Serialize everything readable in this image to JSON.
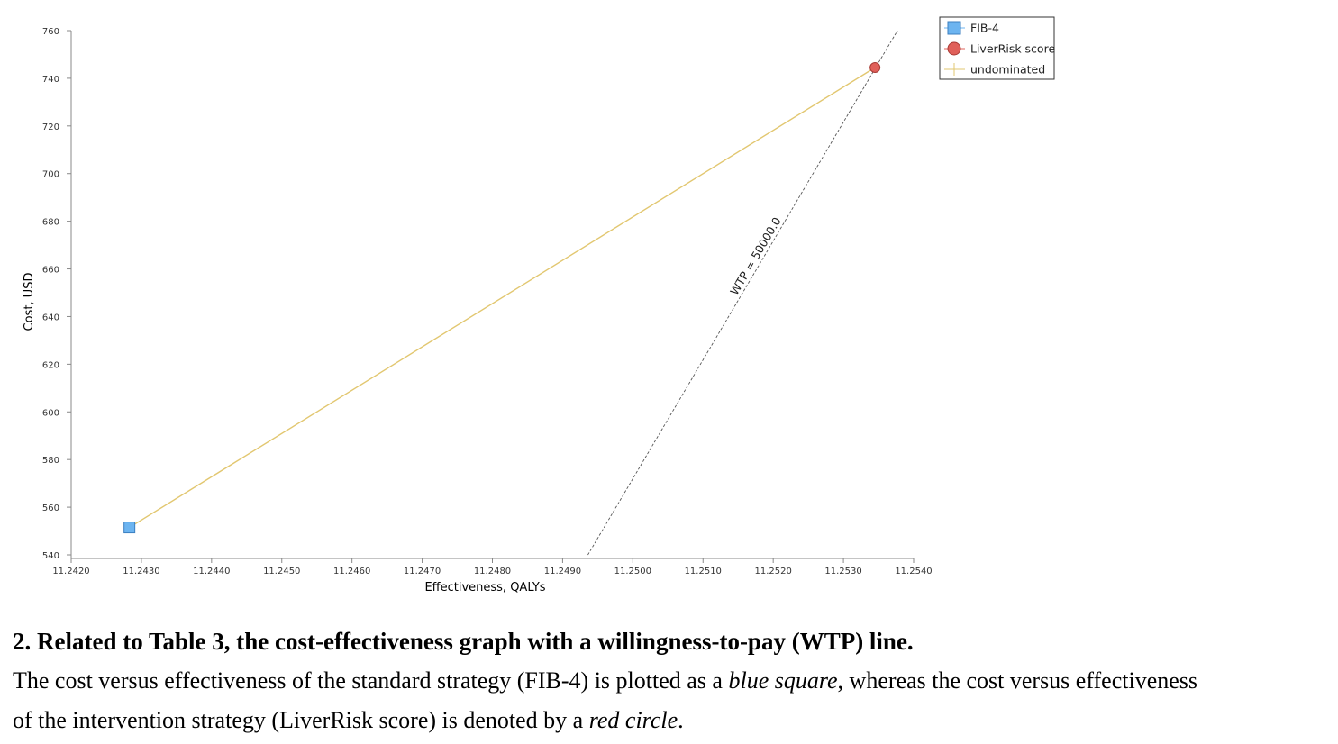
{
  "chart_data": {
    "type": "scatter",
    "xlabel": "Effectiveness, QALYs",
    "ylabel": "Cost, USD",
    "xlim": [
      11.242,
      11.254
    ],
    "ylim": [
      540,
      760
    ],
    "x_ticks": [
      "11.2420",
      "11.2430",
      "11.2440",
      "11.2450",
      "11.2460",
      "11.2470",
      "11.2480",
      "11.2490",
      "11.2500",
      "11.2510",
      "11.2520",
      "11.2530",
      "11.2540"
    ],
    "x_tick_values": [
      11.242,
      11.243,
      11.244,
      11.245,
      11.246,
      11.247,
      11.248,
      11.249,
      11.25,
      11.251,
      11.252,
      11.253,
      11.254
    ],
    "y_ticks": [
      "540",
      "560",
      "580",
      "600",
      "620",
      "640",
      "660",
      "680",
      "700",
      "720",
      "740",
      "760"
    ],
    "y_tick_values": [
      540,
      560,
      580,
      600,
      620,
      640,
      660,
      680,
      700,
      720,
      740,
      760
    ],
    "series": [
      {
        "name": "FIB-4",
        "marker": "square",
        "color": "#6cb4f0",
        "x": [
          11.24283
        ],
        "y": [
          551.5
        ]
      },
      {
        "name": "LiverRisk score",
        "marker": "circle",
        "color": "#e0605a",
        "x": [
          11.25345
        ],
        "y": [
          744.5
        ]
      },
      {
        "name": "undominated",
        "marker": "line",
        "color": "#e2c770",
        "x": [
          11.24283,
          11.25345
        ],
        "y": [
          551.5,
          744.5
        ]
      }
    ],
    "wtp_line": {
      "label": "WTP = 50000.0",
      "x": [
        11.24936,
        11.25377
      ],
      "y": [
        540,
        760
      ],
      "color": "#555555"
    },
    "legend_position": "top-right",
    "grid": false
  },
  "caption": {
    "title": "2. Related to Table 3, the cost-effectiveness graph with a willingness-to-pay (WTP) line.",
    "line1_a": "The cost versus effectiveness of the standard strategy (FIB-4) is plotted as a ",
    "line1_em": "blue square",
    "line1_b": ", whereas the cost versus effectiveness",
    "line2_a": "of the intervention strategy (LiverRisk score) is denoted by a ",
    "line2_em": "red circle",
    "line2_b": "."
  }
}
